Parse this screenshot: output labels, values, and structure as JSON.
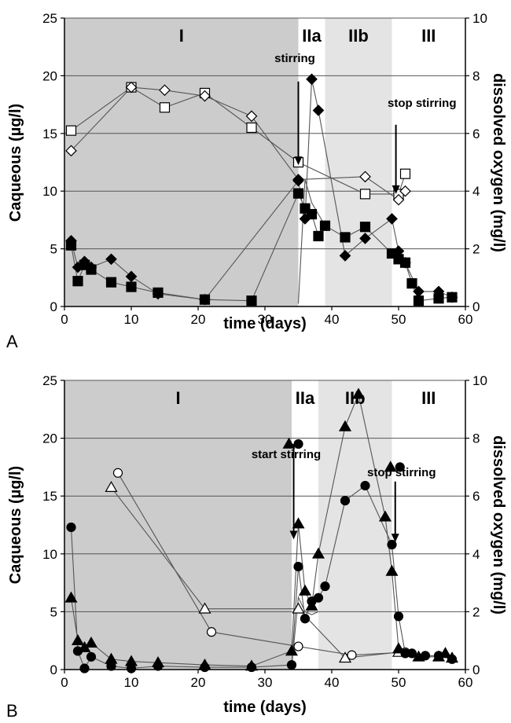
{
  "chart_data": [
    {
      "type": "line",
      "panel_label": "A",
      "xlabel": "time (days)",
      "ylabel": "Caqueous (µg/l)",
      "y2label": "dissolved oxygen (mg/l)",
      "xlim": [
        0,
        60
      ],
      "ylim": [
        0,
        25
      ],
      "y2lim": [
        0,
        10
      ],
      "x_ticks": [
        0,
        10,
        20,
        30,
        40,
        50,
        60
      ],
      "y_ticks": [
        0,
        5,
        10,
        15,
        20,
        25
      ],
      "y2_ticks": [
        0,
        2,
        4,
        6,
        8,
        10
      ],
      "grid": "horizontal",
      "phases": [
        {
          "label": "I",
          "start": 0,
          "end": 35,
          "shade": "dark"
        },
        {
          "label": "IIa",
          "start": 35,
          "end": 39,
          "shade": "none"
        },
        {
          "label": "IIb",
          "start": 39,
          "end": 49,
          "shade": "light"
        },
        {
          "label": "III",
          "start": 49,
          "end": 60,
          "shade": "none"
        }
      ],
      "annotations": [
        {
          "text": "stirring",
          "arrow_x": 35,
          "arrow_from_y2": 7.8,
          "arrow_to_y2": 4.9
        },
        {
          "text": "stop stirring",
          "arrow_x": 49.6,
          "arrow_from_y2": 6.3,
          "arrow_to_y2": 3.9
        }
      ],
      "series": [
        {
          "marker": "square",
          "filled": false,
          "axis": "right",
          "x": [
            1,
            10,
            15,
            21,
            28,
            35,
            45,
            50,
            51
          ],
          "y": [
            6.1,
            7.6,
            6.9,
            7.4,
            6.2,
            5.0,
            3.9,
            3.9,
            4.6
          ]
        },
        {
          "marker": "diamond",
          "filled": false,
          "axis": "right",
          "x": [
            1,
            10,
            15,
            21,
            28,
            35,
            45,
            50,
            51
          ],
          "y": [
            5.4,
            7.6,
            7.5,
            7.3,
            6.6,
            4.4,
            4.5,
            3.7,
            4.0
          ]
        },
        {
          "marker": "diamond",
          "filled": true,
          "axis": "left",
          "x": [
            1,
            2,
            3,
            4,
            7,
            10,
            14,
            21,
            35,
            36,
            37,
            38,
            42,
            45,
            49,
            50,
            51,
            53,
            56,
            58
          ],
          "y": [
            5.7,
            3.4,
            3.9,
            3.4,
            4.1,
            2.6,
            1.1,
            0.6,
            10.9,
            7.6,
            19.7,
            17.0,
            4.4,
            5.9,
            7.6,
            4.8,
            3.8,
            1.3,
            1.3,
            0.8
          ]
        },
        {
          "marker": "square",
          "filled": true,
          "axis": "left",
          "x": [
            1,
            2,
            3,
            4,
            7,
            10,
            14,
            21,
            28,
            35,
            36,
            37,
            38,
            39,
            42,
            45,
            49,
            50,
            51,
            52,
            53,
            56,
            58
          ],
          "y": [
            5.3,
            2.2,
            3.6,
            3.2,
            2.1,
            1.7,
            1.2,
            0.6,
            0.5,
            9.8,
            8.5,
            8.0,
            6.1,
            7.0,
            6.0,
            6.9,
            4.6,
            4.1,
            3.8,
            2.0,
            0.5,
            0.7,
            0.8
          ]
        },
        {
          "marker": "none",
          "filled": false,
          "axis": "right",
          "x": [
            35,
            36,
            37,
            38,
            39
          ],
          "y": [
            0.1,
            4.4,
            3.6,
            3.2,
            2.8
          ]
        }
      ]
    },
    {
      "type": "line",
      "panel_label": "B",
      "xlabel": "time (days)",
      "ylabel": "Caqueous (µg/l)",
      "y2label": "dissolved oxygen (mg/l)",
      "xlim": [
        0,
        60
      ],
      "ylim": [
        0,
        25
      ],
      "y2lim": [
        0,
        10
      ],
      "x_ticks": [
        0,
        10,
        20,
        30,
        40,
        50,
        60
      ],
      "y_ticks": [
        0,
        5,
        10,
        15,
        20,
        25
      ],
      "y2_ticks": [
        0,
        2,
        4,
        6,
        8,
        10
      ],
      "grid": "horizontal",
      "phases": [
        {
          "label": "I",
          "start": 0,
          "end": 34,
          "shade": "dark"
        },
        {
          "label": "IIa",
          "start": 34,
          "end": 38,
          "shade": "none"
        },
        {
          "label": "IIb",
          "start": 38,
          "end": 49,
          "shade": "light"
        },
        {
          "label": "III",
          "start": 49,
          "end": 60,
          "shade": "none"
        }
      ],
      "annotations": [
        {
          "text": "start stirring",
          "arrow_x": 34.3,
          "arrow_from_y2": 7.8,
          "arrow_to_y2": 4.5
        },
        {
          "text": "stop stirring",
          "arrow_x": 49.5,
          "arrow_from_y2": 6.5,
          "arrow_to_y2": 4.4
        }
      ],
      "series": [
        {
          "marker": "circle",
          "filled": false,
          "axis": "right",
          "x": [
            8,
            22,
            35,
            43,
            51
          ],
          "y": [
            6.8,
            1.3,
            0.8,
            0.5,
            0.6
          ]
        },
        {
          "marker": "triangle",
          "filled": false,
          "axis": "right",
          "x": [
            7,
            21,
            35,
            42,
            50
          ],
          "y": [
            6.3,
            2.1,
            2.1,
            0.4,
            0.6
          ]
        },
        {
          "marker": "triangle",
          "filled": true,
          "axis": "left",
          "x": [
            1,
            2,
            3,
            4,
            7,
            10,
            14,
            21,
            28,
            34,
            35,
            36,
            37,
            38,
            42,
            44,
            48,
            49,
            50,
            53,
            56,
            57,
            58
          ],
          "y": [
            6.2,
            2.5,
            1.9,
            2.3,
            0.9,
            0.7,
            0.6,
            0.4,
            0.3,
            1.6,
            12.6,
            6.8,
            5.5,
            10.0,
            21.0,
            23.8,
            13.2,
            8.5,
            1.8,
            1.1,
            1.1,
            1.4,
            1.0
          ]
        },
        {
          "marker": "circle",
          "filled": true,
          "axis": "left",
          "x": [
            1,
            2,
            3,
            4,
            7,
            10,
            14,
            21,
            28,
            34,
            35,
            36,
            37,
            38,
            39,
            42,
            45,
            49,
            50,
            51,
            52,
            54,
            56,
            58
          ],
          "y": [
            12.3,
            1.6,
            0.1,
            1.1,
            0.3,
            0.1,
            0.3,
            0.2,
            0.2,
            0.4,
            8.9,
            4.4,
            5.9,
            6.2,
            7.2,
            14.6,
            15.9,
            10.8,
            4.6,
            1.4,
            1.4,
            1.2,
            1.2,
            0.9
          ]
        },
        {
          "marker": "none",
          "filled": false,
          "axis": "right",
          "x": [
            34,
            35,
            36,
            37,
            38
          ],
          "y": [
            0.1,
            2.5,
            2.0,
            1.9,
            2.0
          ]
        }
      ]
    }
  ]
}
